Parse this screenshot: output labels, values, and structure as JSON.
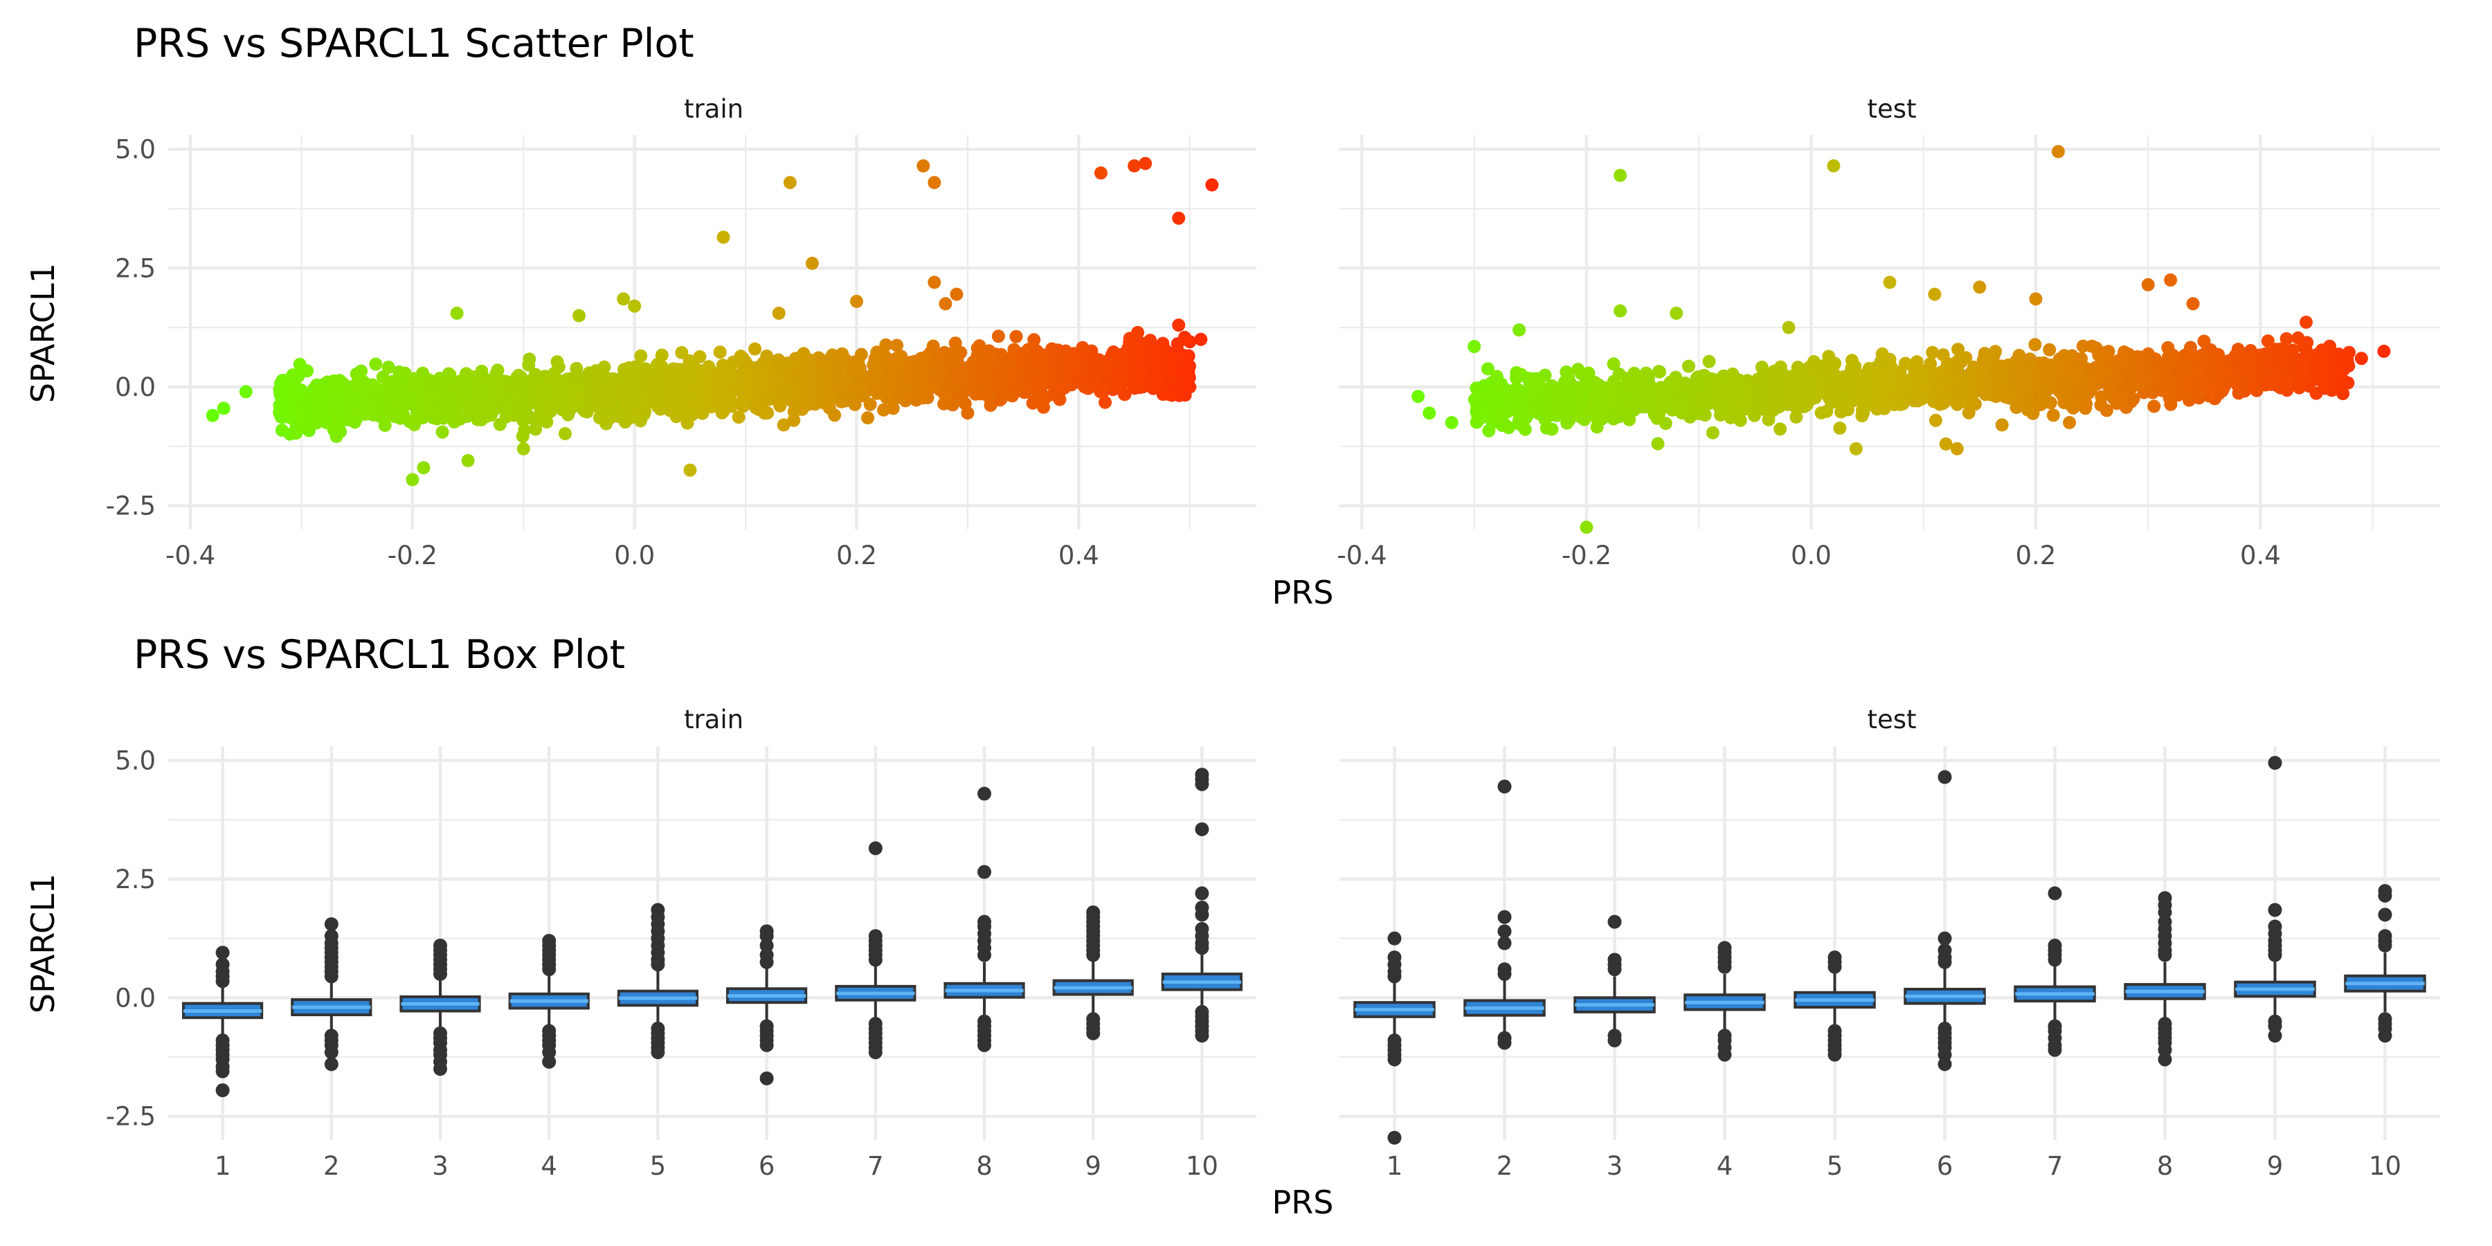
{
  "chart_data": [
    {
      "type": "scatter",
      "title": "PRS vs SPARCL1 Scatter Plot",
      "xlabel": "PRS",
      "ylabel": "SPARCL1",
      "facets": [
        "train",
        "test"
      ],
      "xlim": [
        -0.42,
        0.56
      ],
      "ylim": [
        -3.0,
        5.3
      ],
      "x_ticks": [
        "-0.4",
        "-0.2",
        "0.0",
        "0.2",
        "0.4"
      ],
      "y_ticks": [
        "-2.5",
        "0.0",
        "2.5",
        "5.0"
      ],
      "color_gradient": {
        "low": "#66ff00",
        "mid": "#c8b400",
        "high": "#ff2a00"
      },
      "trend": {
        "intercept": -0.05,
        "slope": 1.0
      },
      "bulk": {
        "train": {
          "x_range": [
            -0.32,
            0.5
          ],
          "n": 2200,
          "sd": 0.27
        },
        "test": {
          "x_range": [
            -0.3,
            0.48
          ],
          "n": 1700,
          "sd": 0.26
        }
      },
      "series": [
        {
          "name": "train",
          "points": [
            [
              -0.38,
              -0.6
            ],
            [
              -0.37,
              -0.45
            ],
            [
              -0.35,
              -0.1
            ],
            [
              -0.2,
              -1.95
            ],
            [
              -0.19,
              -1.7
            ],
            [
              -0.16,
              1.55
            ],
            [
              -0.05,
              1.5
            ],
            [
              -0.01,
              1.85
            ],
            [
              0.0,
              1.7
            ],
            [
              0.05,
              -1.75
            ],
            [
              0.08,
              3.15
            ],
            [
              0.14,
              4.3
            ],
            [
              0.13,
              1.55
            ],
            [
              0.16,
              2.6
            ],
            [
              0.2,
              1.8
            ],
            [
              0.26,
              4.65
            ],
            [
              0.27,
              4.3
            ],
            [
              0.27,
              2.2
            ],
            [
              0.28,
              1.75
            ],
            [
              0.29,
              1.95
            ],
            [
              0.42,
              4.5
            ],
            [
              0.45,
              4.65
            ],
            [
              0.46,
              4.7
            ],
            [
              0.49,
              3.55
            ],
            [
              0.52,
              4.25
            ],
            [
              0.49,
              1.3
            ],
            [
              0.5,
              0.95
            ],
            [
              0.51,
              1.0
            ],
            [
              0.5,
              0.0
            ],
            [
              0.49,
              -0.05
            ],
            [
              0.21,
              -0.65
            ],
            [
              -0.1,
              -1.3
            ],
            [
              -0.15,
              -1.55
            ],
            [
              0.3,
              -0.55
            ]
          ]
        },
        {
          "name": "test",
          "points": [
            [
              -0.35,
              -0.2
            ],
            [
              -0.34,
              -0.55
            ],
            [
              -0.32,
              -0.75
            ],
            [
              -0.3,
              0.85
            ],
            [
              -0.26,
              1.2
            ],
            [
              -0.17,
              4.45
            ],
            [
              -0.17,
              1.6
            ],
            [
              -0.12,
              1.55
            ],
            [
              -0.2,
              -2.95
            ],
            [
              0.02,
              4.65
            ],
            [
              0.22,
              4.95
            ],
            [
              0.07,
              2.2
            ],
            [
              0.11,
              1.95
            ],
            [
              0.15,
              2.1
            ],
            [
              0.2,
              1.85
            ],
            [
              0.3,
              2.15
            ],
            [
              0.32,
              2.25
            ],
            [
              0.34,
              1.75
            ],
            [
              0.04,
              -1.3
            ],
            [
              0.12,
              -1.2
            ],
            [
              0.13,
              -1.3
            ],
            [
              0.17,
              -0.8
            ],
            [
              0.49,
              0.6
            ],
            [
              0.51,
              0.75
            ],
            [
              -0.02,
              1.25
            ],
            [
              0.23,
              -0.75
            ]
          ]
        }
      ]
    },
    {
      "type": "box",
      "title": "PRS vs SPARCL1 Box Plot",
      "xlabel": "PRS",
      "ylabel": "SPARCL1",
      "facets": [
        "train",
        "test"
      ],
      "categories": [
        "1",
        "2",
        "3",
        "4",
        "5",
        "6",
        "7",
        "8",
        "9",
        "10"
      ],
      "ylim": [
        -3.0,
        5.3
      ],
      "y_ticks": [
        "-2.5",
        "0.0",
        "2.5",
        "5.0"
      ],
      "box_fill": "#2f84d6",
      "median_color": "#5fb4f5",
      "series": [
        {
          "name": "train",
          "boxes": [
            {
              "q1": -0.42,
              "median": -0.28,
              "q3": -0.12,
              "whisker_low": -0.85,
              "whisker_high": 0.3,
              "outliers": [
                0.95,
                0.7,
                0.55,
                0.45,
                0.35,
                -0.9,
                -1.0,
                -1.1,
                -1.2,
                -1.3,
                -1.45,
                -1.55,
                -1.95
              ]
            },
            {
              "q1": -0.36,
              "median": -0.2,
              "q3": -0.04,
              "whisker_low": -0.75,
              "whisker_high": 0.4,
              "outliers": [
                1.55,
                1.3,
                1.15,
                1.05,
                0.95,
                0.85,
                0.75,
                0.65,
                0.55,
                0.45,
                -0.8,
                -0.9,
                -1.0,
                -1.15,
                -1.4
              ]
            },
            {
              "q1": -0.28,
              "median": -0.13,
              "q3": 0.02,
              "whisker_low": -0.7,
              "whisker_high": 0.45,
              "outliers": [
                1.1,
                1.0,
                0.9,
                0.8,
                0.7,
                0.6,
                0.5,
                -0.75,
                -0.85,
                -0.95,
                -1.1,
                -1.2,
                -1.35,
                -1.5
              ]
            },
            {
              "q1": -0.22,
              "median": -0.07,
              "q3": 0.08,
              "whisker_low": -0.65,
              "whisker_high": 0.5,
              "outliers": [
                1.2,
                1.1,
                1.0,
                0.9,
                0.8,
                0.7,
                0.6,
                -0.7,
                -0.8,
                -0.9,
                -1.0,
                -1.15,
                -1.35
              ]
            },
            {
              "q1": -0.16,
              "median": -0.01,
              "q3": 0.14,
              "whisker_low": -0.6,
              "whisker_high": 0.58,
              "outliers": [
                1.85,
                1.7,
                1.55,
                1.4,
                1.25,
                1.1,
                0.95,
                0.8,
                0.7,
                -0.65,
                -0.75,
                -0.85,
                -0.95,
                -1.05,
                -1.15
              ]
            },
            {
              "q1": -0.1,
              "median": 0.04,
              "q3": 0.19,
              "whisker_low": -0.55,
              "whisker_high": 0.62,
              "outliers": [
                1.4,
                1.3,
                1.1,
                0.9,
                0.75,
                -0.6,
                -0.7,
                -0.8,
                -0.9,
                -1.0,
                -1.7
              ]
            },
            {
              "q1": -0.05,
              "median": 0.09,
              "q3": 0.24,
              "whisker_low": -0.5,
              "whisker_high": 0.68,
              "outliers": [
                3.15,
                1.3,
                1.2,
                1.1,
                1.0,
                0.9,
                0.8,
                -0.55,
                -0.65,
                -0.75,
                -0.85,
                -0.95,
                -1.05,
                -1.15
              ]
            },
            {
              "q1": 0.01,
              "median": 0.15,
              "q3": 0.3,
              "whisker_low": -0.45,
              "whisker_high": 0.75,
              "outliers": [
                4.3,
                2.65,
                1.6,
                1.5,
                1.35,
                1.2,
                1.05,
                0.9,
                -0.5,
                -0.6,
                -0.7,
                -0.8,
                -0.9,
                -1.0
              ]
            },
            {
              "q1": 0.07,
              "median": 0.21,
              "q3": 0.36,
              "whisker_low": -0.4,
              "whisker_high": 0.8,
              "outliers": [
                1.8,
                1.7,
                1.6,
                1.5,
                1.4,
                1.3,
                1.2,
                1.1,
                1.0,
                0.9,
                -0.45,
                -0.55,
                -0.65,
                -0.75
              ]
            },
            {
              "q1": 0.17,
              "median": 0.33,
              "q3": 0.5,
              "whisker_low": -0.25,
              "whisker_high": 0.95,
              "outliers": [
                4.7,
                4.6,
                4.5,
                3.55,
                2.2,
                1.9,
                1.75,
                1.45,
                1.3,
                1.15,
                1.05,
                -0.3,
                -0.4,
                -0.5,
                -0.6,
                -0.7,
                -0.8
              ]
            }
          ]
        },
        {
          "name": "test",
          "boxes": [
            {
              "q1": -0.4,
              "median": -0.25,
              "q3": -0.1,
              "whisker_low": -0.85,
              "whisker_high": 0.35,
              "outliers": [
                1.25,
                0.85,
                0.7,
                0.55,
                0.45,
                -0.9,
                -1.0,
                -1.1,
                -1.2,
                -1.3,
                -2.95
              ]
            },
            {
              "q1": -0.37,
              "median": -0.22,
              "q3": -0.06,
              "whisker_low": -0.75,
              "whisker_high": 0.4,
              "outliers": [
                4.45,
                1.7,
                1.4,
                1.15,
                0.6,
                0.5,
                -0.85,
                -0.95
              ]
            },
            {
              "q1": -0.3,
              "median": -0.15,
              "q3": 0.0,
              "whisker_low": -0.7,
              "whisker_high": 0.45,
              "outliers": [
                1.6,
                0.8,
                0.7,
                0.6,
                -0.8,
                -0.9
              ]
            },
            {
              "q1": -0.25,
              "median": -0.1,
              "q3": 0.06,
              "whisker_low": -0.7,
              "whisker_high": 0.5,
              "outliers": [
                1.05,
                0.95,
                0.85,
                0.75,
                0.65,
                -0.8,
                -0.9,
                -1.05,
                -1.2
              ]
            },
            {
              "q1": -0.2,
              "median": -0.05,
              "q3": 0.11,
              "whisker_low": -0.65,
              "whisker_high": 0.55,
              "outliers": [
                0.85,
                0.75,
                0.65,
                -0.7,
                -0.8,
                -0.9,
                -1.0,
                -1.1,
                -1.2
              ]
            },
            {
              "q1": -0.12,
              "median": 0.03,
              "q3": 0.18,
              "whisker_low": -0.6,
              "whisker_high": 0.62,
              "outliers": [
                4.65,
                1.25,
                1.0,
                0.85,
                0.75,
                -0.65,
                -0.75,
                -0.85,
                -0.95,
                -1.05,
                -1.2,
                -1.4
              ]
            },
            {
              "q1": -0.07,
              "median": 0.08,
              "q3": 0.23,
              "whisker_low": -0.55,
              "whisker_high": 0.7,
              "outliers": [
                2.2,
                1.1,
                1.0,
                0.9,
                0.8,
                -0.6,
                -0.7,
                -0.85,
                -1.0,
                -1.1
              ]
            },
            {
              "q1": -0.02,
              "median": 0.13,
              "q3": 0.28,
              "whisker_low": -0.5,
              "whisker_high": 0.75,
              "outliers": [
                2.1,
                1.95,
                1.8,
                1.6,
                1.45,
                1.3,
                1.15,
                1.0,
                0.9,
                -0.55,
                -0.65,
                -0.75,
                -0.85,
                -0.95,
                -1.1,
                -1.3
              ]
            },
            {
              "q1": 0.03,
              "median": 0.18,
              "q3": 0.33,
              "whisker_low": -0.45,
              "whisker_high": 0.8,
              "outliers": [
                4.95,
                1.85,
                1.5,
                1.35,
                1.2,
                1.1,
                1.0,
                0.9,
                -0.5,
                -0.6,
                -0.8
              ]
            },
            {
              "q1": 0.14,
              "median": 0.3,
              "q3": 0.46,
              "whisker_low": -0.3,
              "whisker_high": 0.95,
              "outliers": [
                2.25,
                2.15,
                1.75,
                1.3,
                1.2,
                1.1,
                -0.45,
                -0.55,
                -0.65,
                -0.8
              ]
            }
          ]
        }
      ]
    }
  ]
}
